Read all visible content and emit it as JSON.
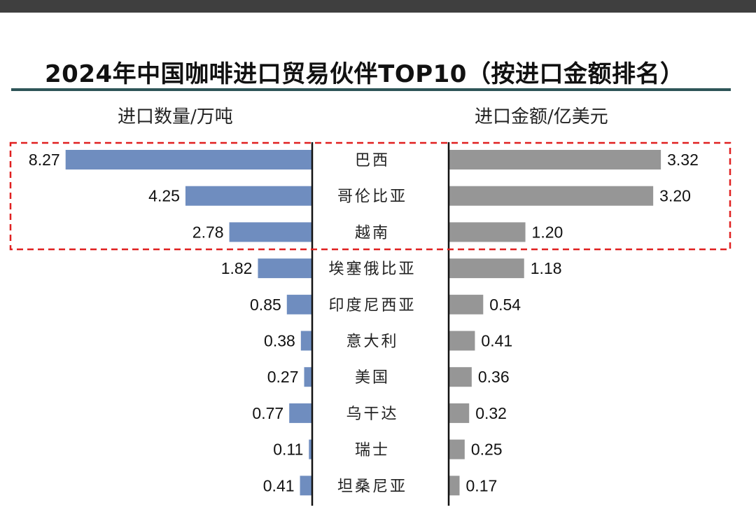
{
  "chart_data": {
    "type": "bar",
    "title": "2024年中国咖啡进口贸易伙伴TOP10（按进口金额排名）",
    "left_axis_label": "进口数量/万吨",
    "right_axis_label": "进口金额/亿美元",
    "categories": [
      "巴西",
      "哥伦比亚",
      "越南",
      "埃塞俄比亚",
      "印度尼西亚",
      "意大利",
      "美国",
      "乌干达",
      "瑞士",
      "坦桑尼亚"
    ],
    "series": [
      {
        "name": "进口数量/万吨",
        "values": [
          8.27,
          4.25,
          2.78,
          1.82,
          0.85,
          0.38,
          0.27,
          0.77,
          0.11,
          0.41
        ],
        "labels": [
          "8.27",
          "4.25",
          "2.78",
          "1.82",
          "0.85",
          "0.38",
          "0.27",
          "0.77",
          "0.11",
          "0.41"
        ],
        "color": "#6f8dbf"
      },
      {
        "name": "进口金额/亿美元",
        "values": [
          3.32,
          3.2,
          1.2,
          1.18,
          0.54,
          0.41,
          0.36,
          0.32,
          0.25,
          0.17
        ],
        "labels": [
          "3.32",
          "3.20",
          "1.20",
          "1.18",
          "0.54",
          "0.41",
          "0.36",
          "0.32",
          "0.25",
          "0.17"
        ],
        "color": "#969696"
      }
    ],
    "highlight": {
      "categories": [
        "巴西",
        "哥伦比亚",
        "越南"
      ],
      "color": "#e02020",
      "style": "dashed"
    },
    "legend": "none",
    "grid": false
  }
}
